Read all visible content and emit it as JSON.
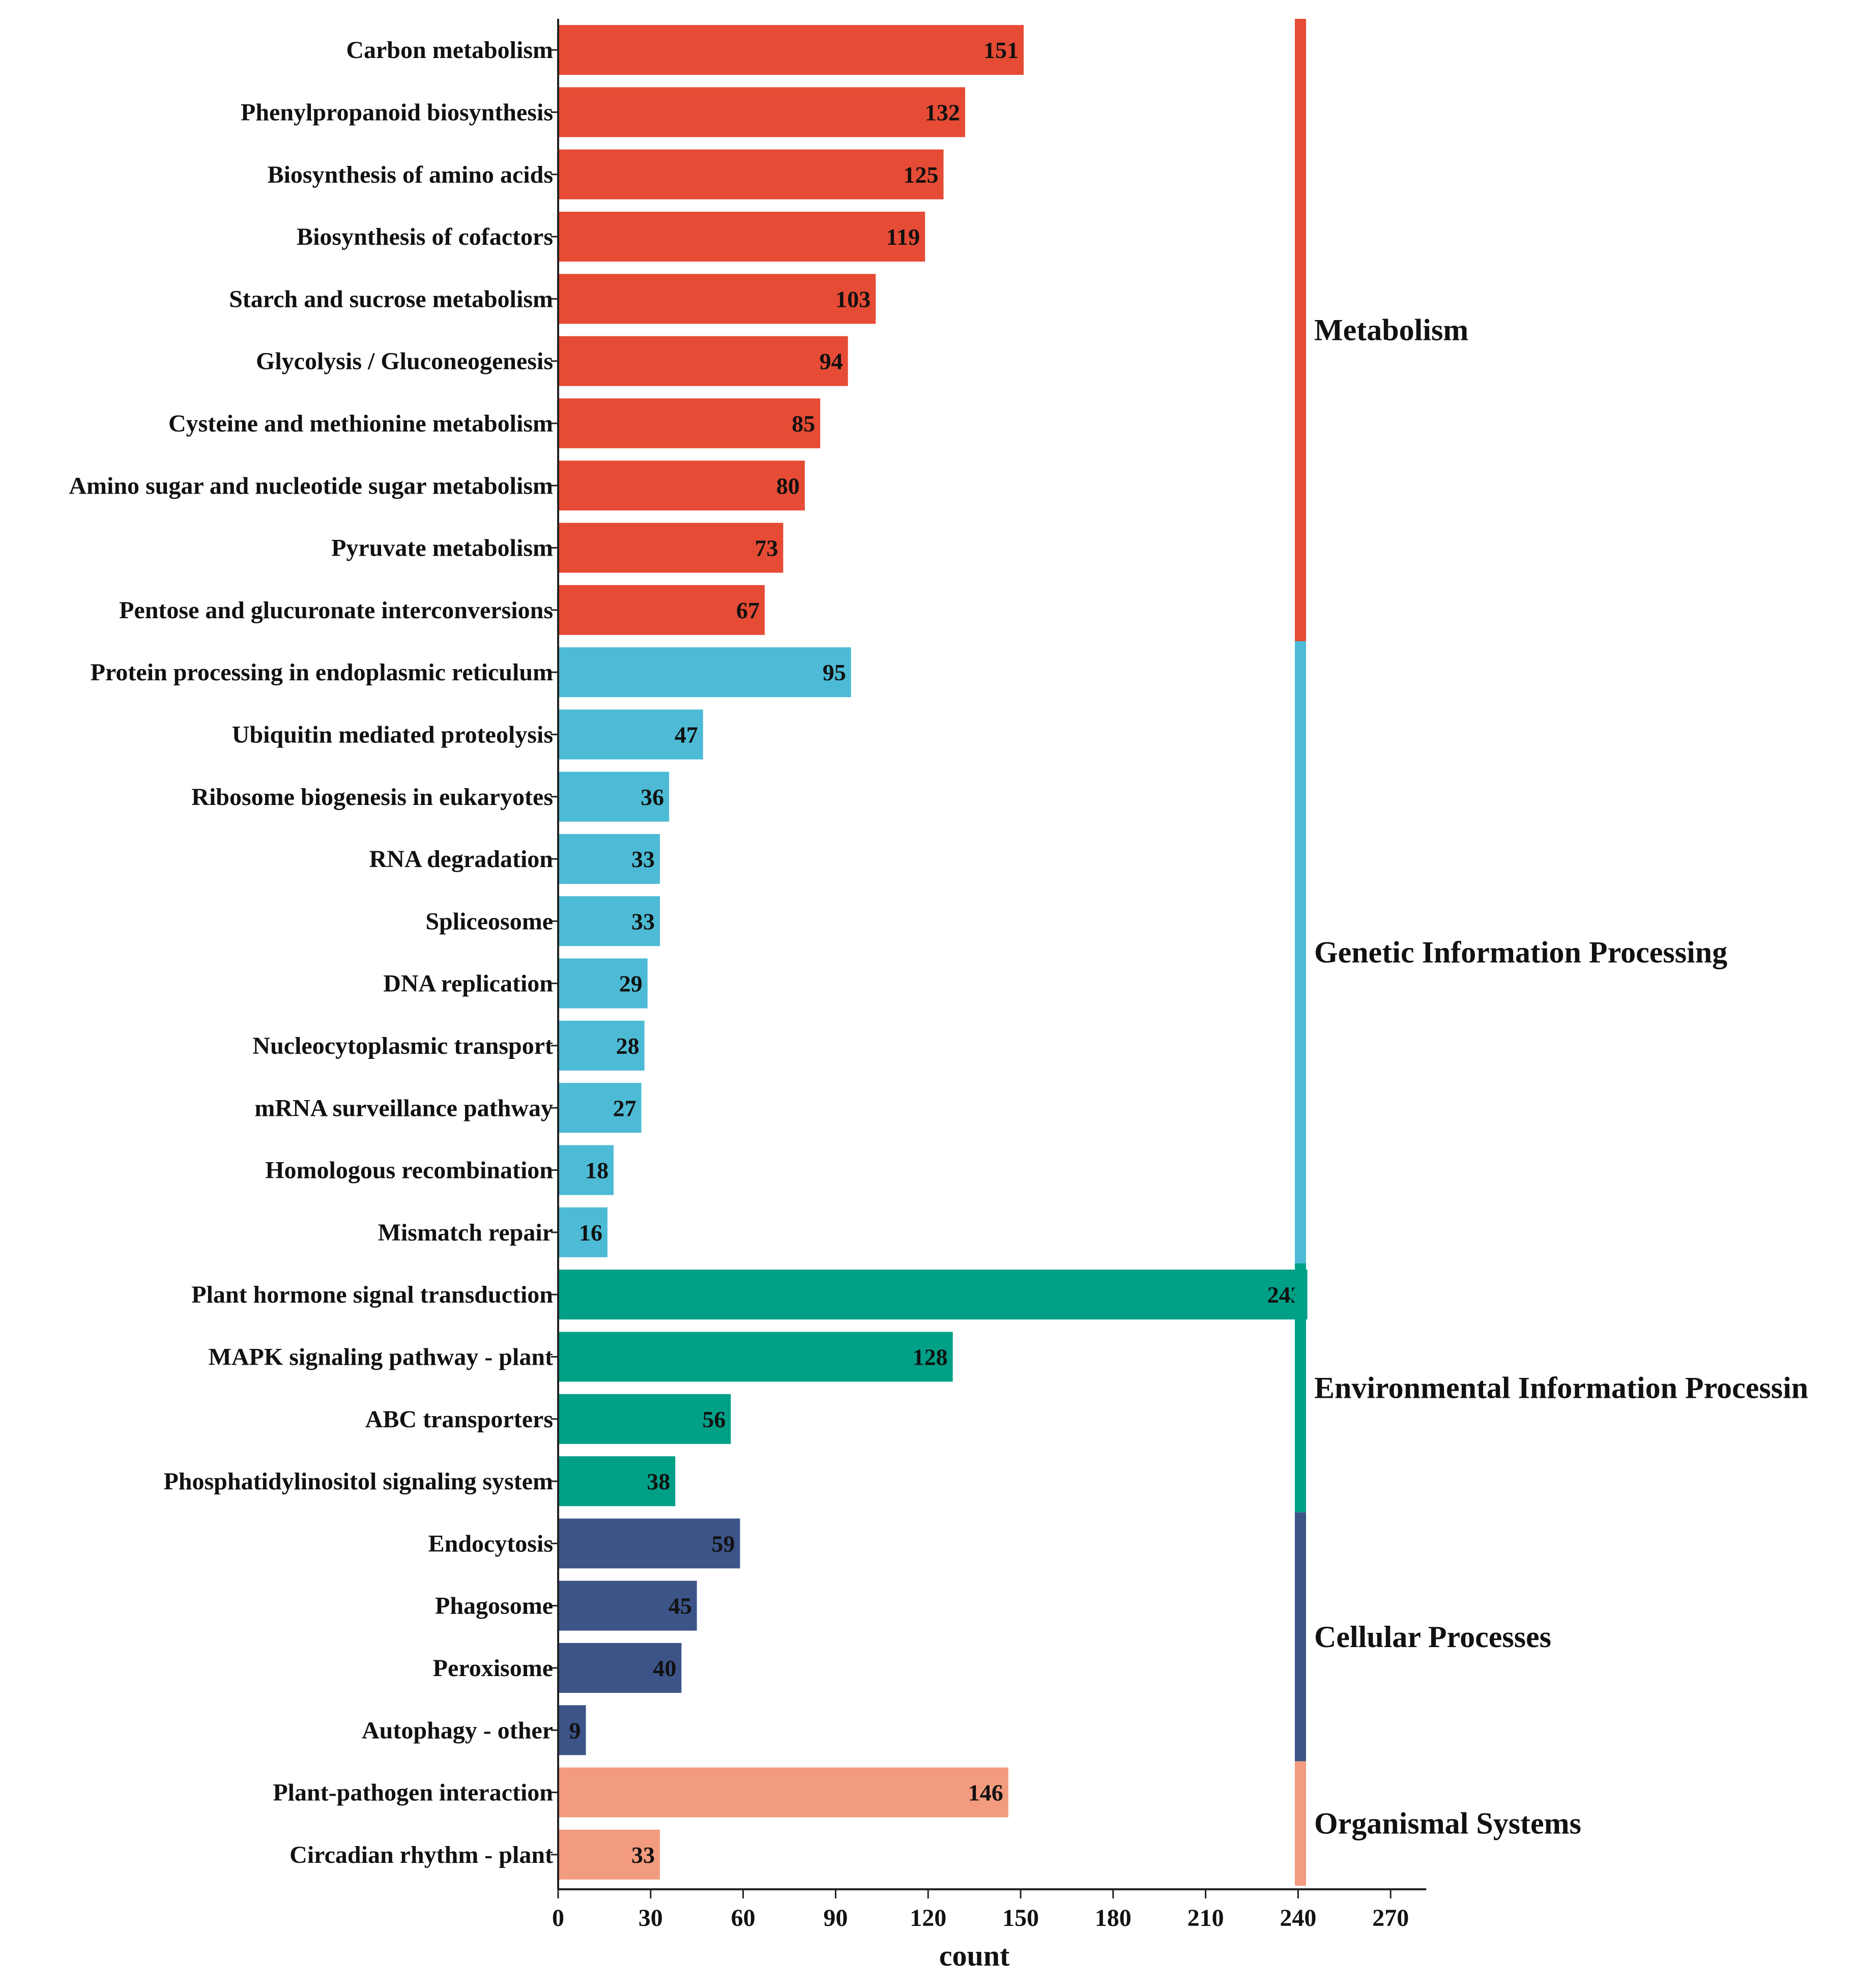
{
  "chart_data": {
    "type": "bar",
    "orientation": "horizontal",
    "title": "",
    "xlabel": "count",
    "ylabel": "",
    "xlim": [
      0,
      270
    ],
    "xticks": [
      0,
      30,
      60,
      90,
      120,
      150,
      180,
      210,
      240,
      270
    ],
    "grid": false,
    "categories": [
      "Carbon metabolism",
      "Phenylpropanoid biosynthesis",
      "Biosynthesis of amino acids",
      "Biosynthesis of cofactors",
      "Starch and sucrose metabolism",
      "Glycolysis / Gluconeogenesis",
      "Cysteine and methionine metabolism",
      "Amino sugar and nucleotide sugar metabolism",
      "Pyruvate metabolism",
      "Pentose and glucuronate interconversions",
      "Protein processing in endoplasmic reticulum",
      "Ubiquitin mediated proteolysis",
      "Ribosome biogenesis in eukaryotes",
      "RNA degradation",
      "Spliceosome",
      "DNA replication",
      "Nucleocytoplasmic transport",
      "mRNA surveillance pathway",
      "Homologous recombination",
      "Mismatch repair",
      "Plant hormone signal transduction",
      "MAPK signaling pathway - plant",
      "ABC transporters",
      "Phosphatidylinositol signaling system",
      "Endocytosis",
      "Phagosome",
      "Peroxisome",
      "Autophagy - other",
      "Plant-pathogen interaction",
      "Circadian rhythm - plant"
    ],
    "values": [
      151,
      132,
      125,
      119,
      103,
      94,
      85,
      80,
      73,
      67,
      95,
      47,
      36,
      33,
      33,
      29,
      28,
      27,
      18,
      16,
      243,
      128,
      56,
      38,
      59,
      45,
      40,
      9,
      146,
      33
    ],
    "groups": [
      {
        "name": "Metabolism",
        "count": 10,
        "color": "#E64B35"
      },
      {
        "name": "Genetic Information Processing",
        "count": 10,
        "color": "#4DBBD5"
      },
      {
        "name": "Environmental Information Processin",
        "count": 4,
        "color": "#00A087"
      },
      {
        "name": "Cellular Processes",
        "count": 4,
        "color": "#3C5488"
      },
      {
        "name": "Organismal Systems",
        "count": 2,
        "color": "#F39B7F"
      }
    ]
  }
}
